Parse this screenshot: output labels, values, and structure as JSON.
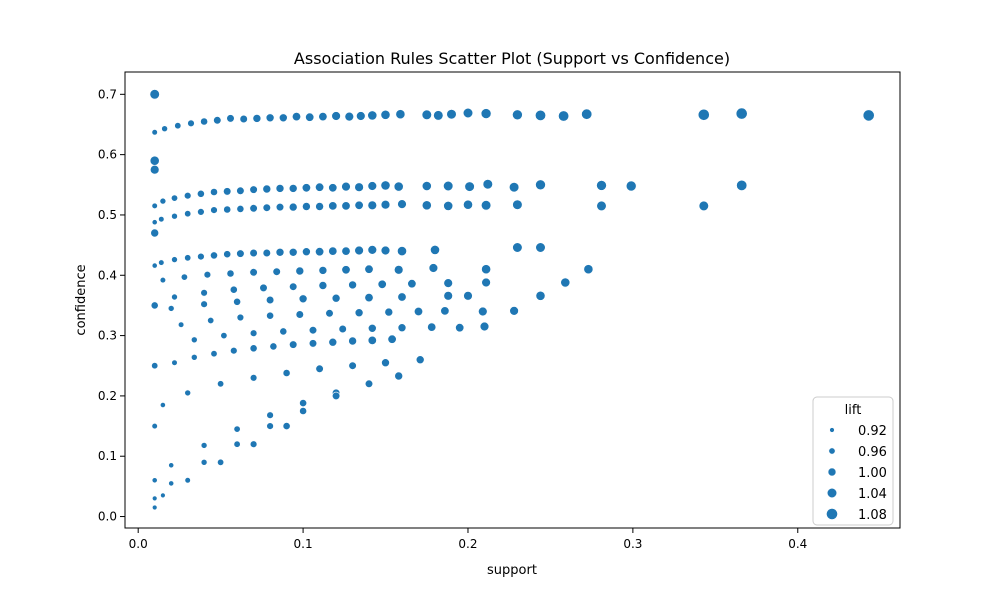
{
  "chart_data": {
    "type": "scatter",
    "title": "Association Rules Scatter Plot (Support vs Confidence)",
    "xlabel": "support",
    "ylabel": "confidence",
    "xlim": [
      -0.008,
      0.462
    ],
    "ylim": [
      -0.019,
      0.737
    ],
    "xticks": [
      0.0,
      0.1,
      0.2,
      0.3,
      0.4
    ],
    "xtick_labels": [
      "0.0",
      "0.1",
      "0.2",
      "0.3",
      "0.4"
    ],
    "yticks": [
      0.0,
      0.1,
      0.2,
      0.3,
      0.4,
      0.5,
      0.6,
      0.7
    ],
    "ytick_labels": [
      "0.0",
      "0.1",
      "0.2",
      "0.3",
      "0.4",
      "0.5",
      "0.6",
      "0.7"
    ],
    "grid": false,
    "point_color": "#1f77b4",
    "point_edge_color": "#ffffff",
    "legend": {
      "title": "lift",
      "placement": "lower right",
      "entries": [
        {
          "label": "0.92",
          "lift": 0.92
        },
        {
          "label": "0.96",
          "lift": 0.96
        },
        {
          "label": "1.00",
          "lift": 1.0
        },
        {
          "label": "1.04",
          "lift": 1.04
        },
        {
          "label": "1.08",
          "lift": 1.08
        }
      ]
    },
    "series": [
      {
        "x": [
          0.443,
          0.366,
          0.343,
          0.272,
          0.258,
          0.244,
          0.23,
          0.211,
          0.2,
          0.19,
          0.182,
          0.175,
          0.159,
          0.15,
          0.142,
          0.135,
          0.128,
          0.12,
          0.112,
          0.104,
          0.096,
          0.088,
          0.08,
          0.072,
          0.064,
          0.056,
          0.048,
          0.04,
          0.032,
          0.024,
          0.016,
          0.01,
          0.366,
          0.343,
          0.299,
          0.281,
          0.244,
          0.228,
          0.212,
          0.201,
          0.188,
          0.175,
          0.158,
          0.15,
          0.142,
          0.134,
          0.126,
          0.118,
          0.11,
          0.102,
          0.094,
          0.086,
          0.078,
          0.07,
          0.062,
          0.054,
          0.046,
          0.038,
          0.03,
          0.022,
          0.015,
          0.01,
          0.281,
          0.23,
          0.211,
          0.2,
          0.188,
          0.175,
          0.16,
          0.15,
          0.142,
          0.134,
          0.126,
          0.118,
          0.11,
          0.102,
          0.094,
          0.086,
          0.078,
          0.07,
          0.062,
          0.054,
          0.046,
          0.038,
          0.03,
          0.022,
          0.014,
          0.01,
          0.244,
          0.23,
          0.18,
          0.16,
          0.15,
          0.142,
          0.134,
          0.126,
          0.118,
          0.11,
          0.102,
          0.094,
          0.086,
          0.078,
          0.07,
          0.062,
          0.054,
          0.046,
          0.038,
          0.03,
          0.022,
          0.014,
          0.01,
          0.273,
          0.211,
          0.179,
          0.158,
          0.14,
          0.126,
          0.112,
          0.098,
          0.084,
          0.07,
          0.056,
          0.042,
          0.028,
          0.015,
          0.259,
          0.211,
          0.188,
          0.166,
          0.148,
          0.13,
          0.112,
          0.094,
          0.076,
          0.058,
          0.04,
          0.022,
          0.244,
          0.2,
          0.188,
          0.16,
          0.14,
          0.12,
          0.1,
          0.08,
          0.06,
          0.04,
          0.02,
          0.228,
          0.209,
          0.186,
          0.17,
          0.152,
          0.134,
          0.116,
          0.098,
          0.08,
          0.062,
          0.044,
          0.026,
          0.21,
          0.195,
          0.178,
          0.16,
          0.142,
          0.124,
          0.106,
          0.088,
          0.07,
          0.052,
          0.034,
          0.154,
          0.142,
          0.13,
          0.118,
          0.106,
          0.094,
          0.082,
          0.07,
          0.058,
          0.046,
          0.034,
          0.022,
          0.171,
          0.15,
          0.13,
          0.11,
          0.09,
          0.07,
          0.05,
          0.03,
          0.015,
          0.158,
          0.14,
          0.12,
          0.1,
          0.08,
          0.06,
          0.04,
          0.02,
          0.12,
          0.1,
          0.08,
          0.06,
          0.04,
          0.02,
          0.01,
          0.09,
          0.07,
          0.05,
          0.03,
          0.015,
          0.01,
          0.01,
          0.01,
          0.01,
          0.01,
          0.01,
          0.01,
          0.01,
          0.01
        ],
        "y": [
          0.665,
          0.668,
          0.666,
          0.667,
          0.664,
          0.665,
          0.666,
          0.668,
          0.669,
          0.667,
          0.665,
          0.666,
          0.667,
          0.666,
          0.665,
          0.664,
          0.663,
          0.664,
          0.663,
          0.662,
          0.663,
          0.661,
          0.661,
          0.66,
          0.659,
          0.66,
          0.657,
          0.655,
          0.652,
          0.648,
          0.643,
          0.637,
          0.549,
          0.515,
          0.548,
          0.549,
          0.55,
          0.546,
          0.551,
          0.547,
          0.548,
          0.548,
          0.547,
          0.549,
          0.548,
          0.546,
          0.547,
          0.545,
          0.546,
          0.545,
          0.544,
          0.544,
          0.543,
          0.542,
          0.54,
          0.539,
          0.538,
          0.535,
          0.532,
          0.528,
          0.523,
          0.515,
          0.515,
          0.517,
          0.516,
          0.517,
          0.515,
          0.516,
          0.518,
          0.517,
          0.516,
          0.516,
          0.515,
          0.515,
          0.514,
          0.514,
          0.513,
          0.513,
          0.512,
          0.511,
          0.51,
          0.509,
          0.508,
          0.505,
          0.502,
          0.498,
          0.493,
          0.488,
          0.446,
          0.446,
          0.442,
          0.44,
          0.441,
          0.442,
          0.441,
          0.44,
          0.44,
          0.439,
          0.439,
          0.438,
          0.438,
          0.437,
          0.437,
          0.436,
          0.435,
          0.433,
          0.431,
          0.429,
          0.426,
          0.421,
          0.416,
          0.41,
          0.41,
          0.412,
          0.409,
          0.41,
          0.409,
          0.408,
          0.407,
          0.406,
          0.405,
          0.403,
          0.401,
          0.397,
          0.392,
          0.388,
          0.388,
          0.387,
          0.386,
          0.385,
          0.384,
          0.383,
          0.381,
          0.379,
          0.376,
          0.371,
          0.364,
          0.366,
          0.366,
          0.366,
          0.364,
          0.363,
          0.362,
          0.361,
          0.359,
          0.356,
          0.352,
          0.345,
          0.341,
          0.34,
          0.341,
          0.34,
          0.339,
          0.338,
          0.337,
          0.335,
          0.333,
          0.33,
          0.325,
          0.318,
          0.315,
          0.313,
          0.314,
          0.313,
          0.312,
          0.311,
          0.309,
          0.307,
          0.304,
          0.3,
          0.293,
          0.294,
          0.292,
          0.291,
          0.289,
          0.287,
          0.285,
          0.282,
          0.279,
          0.275,
          0.27,
          0.264,
          0.255,
          0.26,
          0.255,
          0.25,
          0.245,
          0.238,
          0.23,
          0.22,
          0.205,
          0.185,
          0.233,
          0.22,
          0.205,
          0.188,
          0.168,
          0.145,
          0.118,
          0.085,
          0.2,
          0.175,
          0.15,
          0.12,
          0.09,
          0.055,
          0.03,
          0.15,
          0.12,
          0.09,
          0.06,
          0.035,
          0.7,
          0.59,
          0.575,
          0.47,
          0.35,
          0.25,
          0.15,
          0.06,
          0.015
        ],
        "lift": [
          1.08,
          1.08,
          1.08,
          1.06,
          1.06,
          1.06,
          1.05,
          1.05,
          1.04,
          1.04,
          1.04,
          1.04,
          1.03,
          1.03,
          1.03,
          1.02,
          1.02,
          1.02,
          1.01,
          1.01,
          1.01,
          1.0,
          1.0,
          1.0,
          0.99,
          0.99,
          0.99,
          0.98,
          0.97,
          0.96,
          0.95,
          0.94,
          1.06,
          1.04,
          1.05,
          1.05,
          1.05,
          1.04,
          1.04,
          1.04,
          1.04,
          1.03,
          1.03,
          1.03,
          1.02,
          1.02,
          1.02,
          1.01,
          1.01,
          1.01,
          1.0,
          1.0,
          1.0,
          0.99,
          0.99,
          0.99,
          0.98,
          0.98,
          0.97,
          0.96,
          0.95,
          0.94,
          1.04,
          1.04,
          1.04,
          1.03,
          1.03,
          1.03,
          1.02,
          1.02,
          1.02,
          1.01,
          1.01,
          1.01,
          1.0,
          1.0,
          1.0,
          0.99,
          0.99,
          0.99,
          0.98,
          0.98,
          0.97,
          0.97,
          0.96,
          0.95,
          0.94,
          0.93,
          1.04,
          1.04,
          1.03,
          1.03,
          1.02,
          1.02,
          1.02,
          1.01,
          1.01,
          1.01,
          1.0,
          1.0,
          1.0,
          0.99,
          0.99,
          0.99,
          0.98,
          0.98,
          0.97,
          0.96,
          0.95,
          0.94,
          0.93,
          1.03,
          1.03,
          1.02,
          1.02,
          1.01,
          1.01,
          1.0,
          1.0,
          0.99,
          0.99,
          0.98,
          0.97,
          0.96,
          0.94,
          1.03,
          1.02,
          1.02,
          1.01,
          1.01,
          1.0,
          1.0,
          0.99,
          0.99,
          0.98,
          0.97,
          0.95,
          1.03,
          1.02,
          1.02,
          1.01,
          1.01,
          1.0,
          1.0,
          0.99,
          0.98,
          0.97,
          0.95,
          1.02,
          1.02,
          1.01,
          1.01,
          1.0,
          1.0,
          0.99,
          0.99,
          0.98,
          0.97,
          0.96,
          0.94,
          1.02,
          1.01,
          1.01,
          1.0,
          1.0,
          0.99,
          0.99,
          0.98,
          0.97,
          0.96,
          0.95,
          1.01,
          1.01,
          1.0,
          1.0,
          0.99,
          0.99,
          0.98,
          0.98,
          0.97,
          0.96,
          0.95,
          0.94,
          1.0,
          1.0,
          0.99,
          0.99,
          0.98,
          0.97,
          0.96,
          0.95,
          0.93,
          1.0,
          0.99,
          0.99,
          0.98,
          0.97,
          0.96,
          0.95,
          0.93,
          0.99,
          0.98,
          0.97,
          0.96,
          0.95,
          0.93,
          0.92,
          0.98,
          0.97,
          0.96,
          0.94,
          0.92,
          1.04,
          1.03,
          1.02,
          1.0,
          0.98,
          0.96,
          0.94,
          0.93,
          0.92
        ]
      }
    ]
  }
}
